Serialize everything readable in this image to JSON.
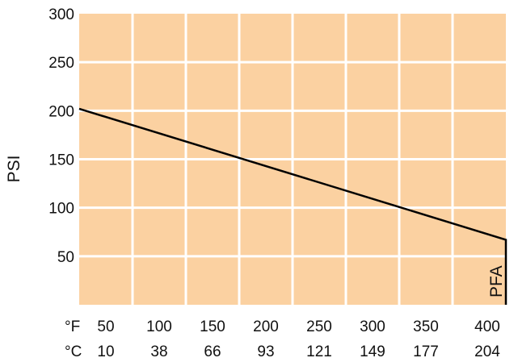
{
  "chart_data": {
    "type": "line",
    "title": "",
    "ylabel": "PSI",
    "xlabel": "",
    "x_unit_labels": [
      "°F",
      "°C"
    ],
    "x_fahrenheit_ticks": [
      "50",
      "100",
      "150",
      "200",
      "250",
      "300",
      "350",
      "400"
    ],
    "x_celsius_ticks": [
      "10",
      "38",
      "66",
      "93",
      "121",
      "149",
      "177",
      "204"
    ],
    "y_ticks": [
      "50",
      "100",
      "150",
      "200",
      "250",
      "300"
    ],
    "xlim": [
      0,
      400
    ],
    "ylim": [
      0,
      300
    ],
    "grid": true,
    "colors": {
      "plot_background": "#FBD1A1",
      "grid": "#FFFFFF",
      "line": "#000000"
    },
    "series": [
      {
        "name": "PFA",
        "x": [
          0,
          400,
          400
        ],
        "y": [
          202,
          67,
          0
        ]
      }
    ]
  }
}
